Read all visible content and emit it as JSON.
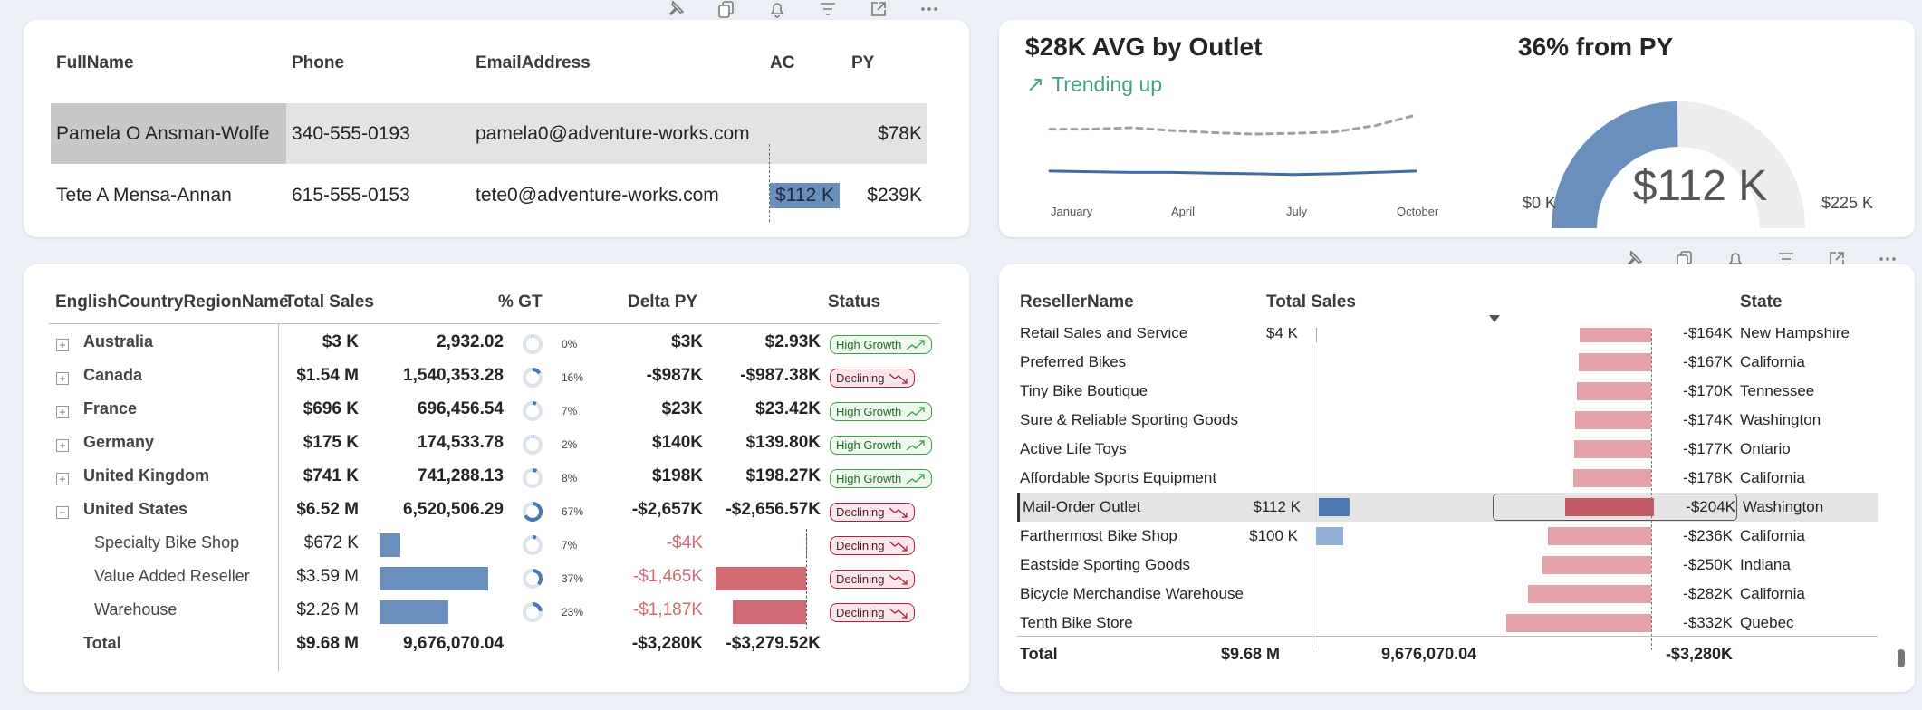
{
  "top_toolbar": [
    "pin-icon",
    "copy-icon",
    "bell-icon",
    "filter-icon",
    "expand-icon",
    "more-icon"
  ],
  "mid_toolbar": [
    "pin-icon",
    "copy-icon",
    "bell-icon",
    "filter-icon",
    "expand-icon",
    "more-icon"
  ],
  "contacts": {
    "headers": {
      "name": "FullName",
      "phone": "Phone",
      "email": "EmailAddress",
      "ac": "AC",
      "py": "PY"
    },
    "rows": [
      {
        "name": "Pamela O Ansman-Wolfe",
        "phone": "340-555-0193",
        "email": "pamela0@adventure-works.com",
        "ac": "",
        "py": "$78K"
      },
      {
        "name": "Tete A Mensa-Annan",
        "phone": "615-555-0153",
        "email": "tete0@adventure-works.com",
        "ac": "$112 K",
        "py": "$239K"
      }
    ]
  },
  "kpi": {
    "title": "$28K AVG by Outlet",
    "trend": "Trending up",
    "months": [
      "January",
      "April",
      "July",
      "October"
    ],
    "chart_data": {
      "type": "line",
      "x": [
        "January",
        "February",
        "March",
        "April",
        "May",
        "June",
        "July",
        "August",
        "September",
        "October"
      ],
      "series": [
        {
          "values": [
            9,
            9,
            9.2,
            8.8,
            8.5,
            8.3,
            8.4,
            8.6,
            9.5,
            11
          ]
        },
        {
          "values": [
            3,
            2.9,
            2.8,
            2.8,
            2.7,
            2.6,
            2.5,
            2.6,
            2.8,
            3.0
          ]
        }
      ]
    }
  },
  "gauge": {
    "title": "36% from PY",
    "value": "$112 K",
    "min": "$0 K",
    "max": "$225 K",
    "chart_data": {
      "type": "gauge",
      "value": 112,
      "min": 0,
      "max": 225
    },
    "fill_color": "#6b8fbc"
  },
  "matrix": {
    "headers": {
      "region": "EnglishCountryRegionName",
      "sales": "Total Sales",
      "gt": "% GT",
      "delta": "Delta PY",
      "status": "Status"
    },
    "rows": [
      {
        "name": "Australia",
        "sales": "$3 K",
        "sales_num": "2,932.02",
        "gt": "0%",
        "gt_val": 0,
        "delta": "$3K",
        "delta2": "$2.93K",
        "status": "High Growth",
        "trend": "up",
        "expander": "+"
      },
      {
        "name": "Canada",
        "sales": "$1.54 M",
        "sales_num": "1,540,353.28",
        "gt": "16%",
        "gt_val": 16,
        "delta": "-$987K",
        "delta2": "-$987.38K",
        "status": "Declining",
        "trend": "down",
        "expander": "+"
      },
      {
        "name": "France",
        "sales": "$696 K",
        "sales_num": "696,456.54",
        "gt": "7%",
        "gt_val": 7,
        "delta": "$23K",
        "delta2": "$23.42K",
        "status": "High Growth",
        "trend": "up",
        "expander": "+"
      },
      {
        "name": "Germany",
        "sales": "$175 K",
        "sales_num": "174,533.78",
        "gt": "2%",
        "gt_val": 2,
        "delta": "$140K",
        "delta2": "$139.80K",
        "status": "High Growth",
        "trend": "up",
        "expander": "+"
      },
      {
        "name": "United Kingdom",
        "sales": "$741 K",
        "sales_num": "741,288.13",
        "gt": "8%",
        "gt_val": 8,
        "delta": "$198K",
        "delta2": "$198.27K",
        "status": "High Growth",
        "trend": "up",
        "expander": "+"
      },
      {
        "name": "United States",
        "sales": "$6.52 M",
        "sales_num": "6,520,506.29",
        "gt": "67%",
        "gt_val": 67,
        "delta": "-$2,657K",
        "delta2": "-$2,656.57K",
        "status": "Declining",
        "trend": "down",
        "expander": "−"
      }
    ],
    "sub_rows": [
      {
        "name": "Specialty Bike Shop",
        "sales": "$672 K",
        "bar": 672,
        "gt": "7%",
        "gt_val": 7,
        "delta": "-$4K",
        "delta_bar": 4,
        "status": "Declining"
      },
      {
        "name": "Value Added Reseller",
        "sales": "$3.59 M",
        "bar": 3590,
        "gt": "37%",
        "gt_val": 37,
        "delta": "-$1,465K",
        "delta_bar": 1465,
        "status": "Declining"
      },
      {
        "name": "Warehouse",
        "sales": "$2.26 M",
        "bar": 2260,
        "gt": "23%",
        "gt_val": 23,
        "delta": "-$1,187K",
        "delta_bar": 1187,
        "status": "Declining"
      }
    ],
    "total": {
      "label": "Total",
      "sales": "$9.68 M",
      "sales_num": "9,676,070.04",
      "delta": "-$3,280K",
      "delta2": "-$3,279.52K"
    }
  },
  "resellers": {
    "headers": {
      "name": "ResellerName",
      "sales": "Total Sales",
      "state": "State"
    },
    "rows": [
      {
        "name": "Retail Sales and Service",
        "sales": "$4 K",
        "bar": 4,
        "delta": "-$164K",
        "delta_val": 164,
        "state": "New Hampshire"
      },
      {
        "name": "Preferred Bikes",
        "sales": "",
        "bar": 0,
        "delta": "-$167K",
        "delta_val": 167,
        "state": "California"
      },
      {
        "name": "Tiny Bike Boutique",
        "sales": "",
        "bar": 0,
        "delta": "-$170K",
        "delta_val": 170,
        "state": "Tennessee"
      },
      {
        "name": "Sure & Reliable Sporting Goods",
        "sales": "",
        "bar": 0,
        "delta": "-$174K",
        "delta_val": 174,
        "state": "Washington"
      },
      {
        "name": "Active Life Toys",
        "sales": "",
        "bar": 0,
        "delta": "-$177K",
        "delta_val": 177,
        "state": "Ontario"
      },
      {
        "name": "Affordable Sports Equipment",
        "sales": "",
        "bar": 0,
        "delta": "-$178K",
        "delta_val": 178,
        "state": "California"
      },
      {
        "name": "Mail-Order Outlet",
        "sales": "$112 K",
        "bar": 112,
        "delta": "-$204K",
        "delta_val": 204,
        "state": "Washington",
        "selected": true
      },
      {
        "name": "Farthermost Bike Shop",
        "sales": "$100 K",
        "bar": 100,
        "delta": "-$236K",
        "delta_val": 236,
        "state": "California"
      },
      {
        "name": "Eastside Sporting Goods",
        "sales": "",
        "bar": 0,
        "delta": "-$250K",
        "delta_val": 250,
        "state": "Indiana"
      },
      {
        "name": "Bicycle Merchandise Warehouse",
        "sales": "",
        "bar": 0,
        "delta": "-$282K",
        "delta_val": 282,
        "state": "California"
      },
      {
        "name": "Tenth Bike Store",
        "sales": "",
        "bar": 0,
        "delta": "-$332K",
        "delta_val": 332,
        "state": "Quebec"
      }
    ],
    "total": {
      "label": "Total",
      "sales": "$9.68 M",
      "sales_num": "9,676,070.04",
      "delta": "-$3,280K"
    }
  }
}
